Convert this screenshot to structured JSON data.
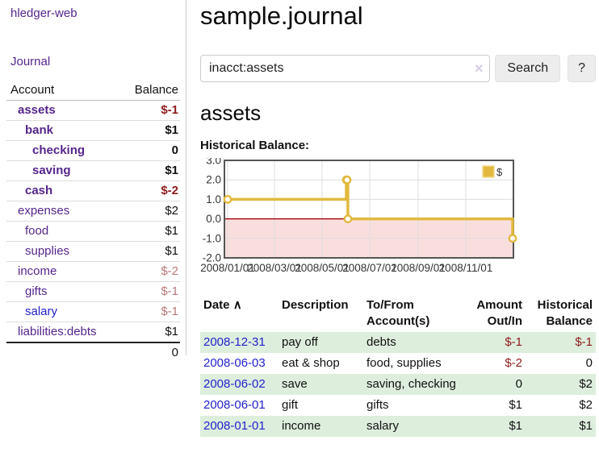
{
  "sidebar": {
    "brand": "hledger-web",
    "journal_link": "Journal",
    "table": {
      "headers": {
        "account": "Account",
        "balance": "Balance"
      },
      "accounts": [
        {
          "name": "assets",
          "balance": "$-1"
        },
        {
          "name": "bank",
          "balance": "$1"
        },
        {
          "name": "checking",
          "balance": "0"
        },
        {
          "name": "saving",
          "balance": "$1"
        },
        {
          "name": "cash",
          "balance": "$-2"
        },
        {
          "name": "expenses",
          "balance": "$2"
        },
        {
          "name": "food",
          "balance": "$1"
        },
        {
          "name": "supplies",
          "balance": "$1"
        },
        {
          "name": "income",
          "balance": "$-2"
        },
        {
          "name": "gifts",
          "balance": "$-1"
        },
        {
          "name": "salary",
          "balance": "$-1"
        },
        {
          "name": "liabilities:debts",
          "balance": "$1"
        }
      ],
      "total": "0"
    }
  },
  "main": {
    "title": "sample.journal",
    "search": {
      "value": "inacct:assets",
      "clear_icon": "×",
      "button_label": "Search",
      "help_label": "?"
    },
    "account_heading": "assets",
    "chart_label": "Historical Balance:",
    "register": {
      "headers": {
        "date": "Date",
        "sort_icon": "∧",
        "description": "Description",
        "tofrom": "To/From Account(s)",
        "amount": "Amount Out/In",
        "historical": "Historical Balance"
      },
      "rows": [
        {
          "date": "2008-12-31",
          "description": "pay off",
          "accounts": "debts",
          "amount": "$-1",
          "balance": "$-1"
        },
        {
          "date": "2008-06-03",
          "description": "eat & shop",
          "accounts": "food, supplies",
          "amount": "$-2",
          "balance": "0"
        },
        {
          "date": "2008-06-02",
          "description": "save",
          "accounts": "saving, checking",
          "amount": "0",
          "balance": "$2"
        },
        {
          "date": "2008-06-01",
          "description": "gift",
          "accounts": "gifts",
          "amount": "$1",
          "balance": "$2"
        },
        {
          "date": "2008-01-01",
          "description": "income",
          "accounts": "salary",
          "amount": "$1",
          "balance": "$1"
        }
      ]
    }
  },
  "chart_data": {
    "type": "line",
    "title": "Historical Balance:",
    "step": true,
    "series": [
      {
        "name": "$",
        "color": "#e2b93e",
        "points": [
          [
            "2008-01-01",
            1
          ],
          [
            "2008-06-01",
            2
          ],
          [
            "2008-06-02",
            2
          ],
          [
            "2008-06-03",
            0
          ],
          [
            "2008-12-31",
            -1
          ]
        ]
      }
    ],
    "xrange": [
      "2008-01-01",
      "2008-12-31"
    ],
    "ylim": [
      -2,
      3
    ],
    "yticks": [
      "3.0",
      "2.0",
      "1.0",
      "0.0",
      "-1.0",
      "-2.0"
    ],
    "xticks": [
      "2008/01/01",
      "2008/03/01",
      "2008/05/01",
      "2008/07/01",
      "2008/09/01",
      "2008/11/01"
    ],
    "grid": true,
    "legend_position": "top-right",
    "colors": {
      "grid": "#dddddd",
      "border": "#555555",
      "zero_line": "#a40000",
      "negative_fill": "#f9dede",
      "tick_text": "#333333"
    }
  },
  "colors": {
    "link_visited_purple": "#56258c",
    "link_blue": "#2222cc",
    "negative_red": "#8f1b1b",
    "negative_soft_red": "#ba7878",
    "row_green": "#ddeedd",
    "accent_gold": "#e2b93e"
  }
}
